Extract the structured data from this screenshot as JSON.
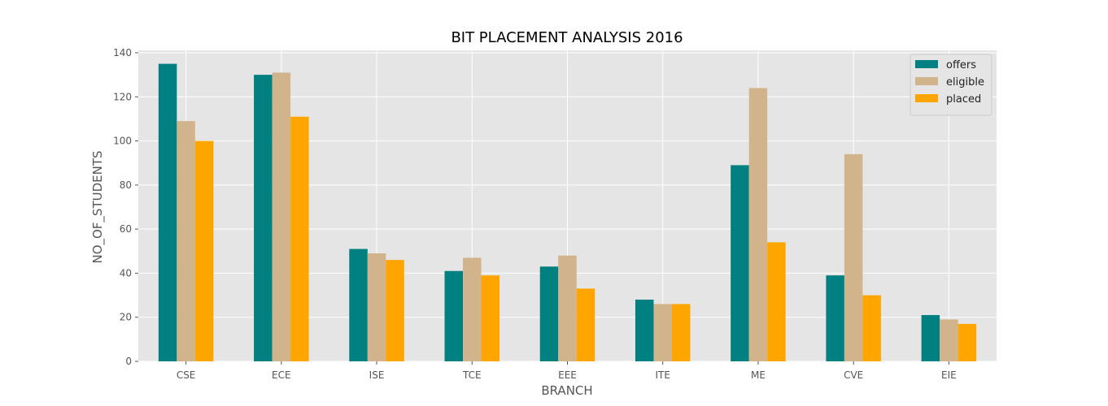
{
  "chart_data": {
    "type": "bar",
    "title": "BIT PLACEMENT ANALYSIS 2016",
    "xlabel": "BRANCH",
    "ylabel": "NO_OF_STUDENTS",
    "categories": [
      "CSE",
      "ECE",
      "ISE",
      "TCE",
      "EEE",
      "ITE",
      "ME",
      "CVE",
      "EIE"
    ],
    "ylim": [
      0,
      140
    ],
    "yticks": [
      0,
      20,
      40,
      60,
      80,
      100,
      120,
      140
    ],
    "grid": true,
    "legend_position": "top-right",
    "series": [
      {
        "name": "offers",
        "color": "#008080",
        "values": [
          135,
          130,
          51,
          41,
          43,
          28,
          89,
          39,
          21
        ]
      },
      {
        "name": "eligible",
        "color": "#d2b48c",
        "values": [
          109,
          131,
          49,
          47,
          48,
          26,
          124,
          94,
          19
        ]
      },
      {
        "name": "placed",
        "color": "#ffa500",
        "values": [
          100,
          111,
          46,
          39,
          33,
          26,
          54,
          30,
          17
        ]
      }
    ]
  }
}
